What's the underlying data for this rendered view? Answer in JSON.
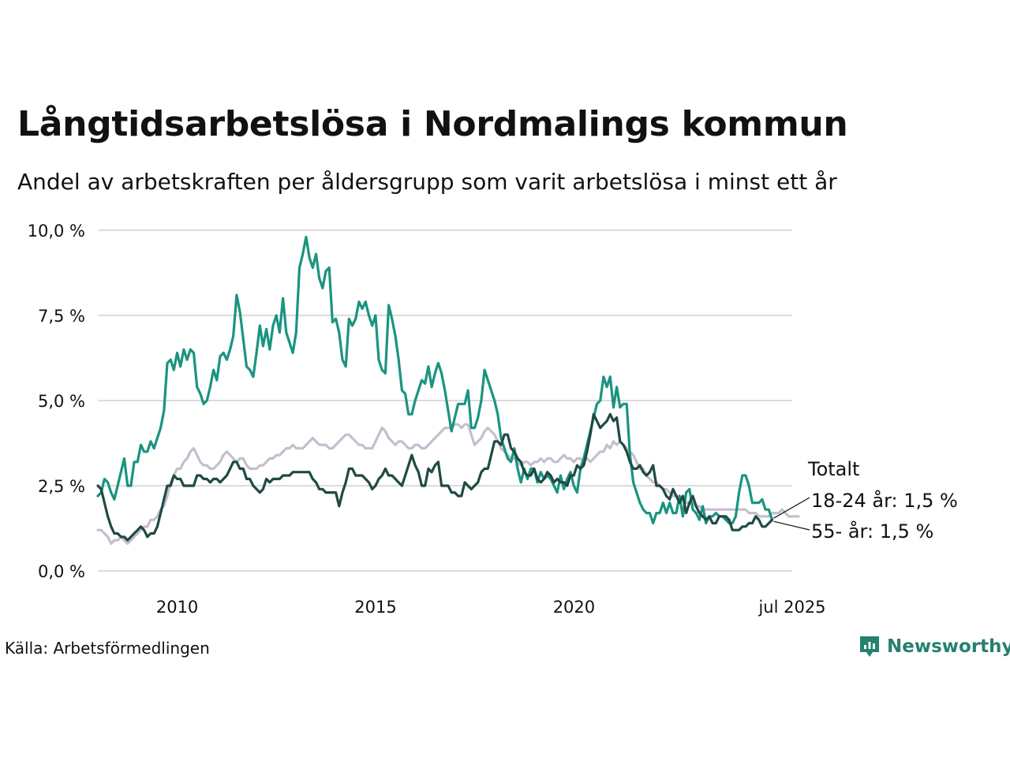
{
  "title": "Långtidsarbetslösa i Nordmalings kommun",
  "subtitle": "Andel av arbetskraften per åldersgrupp som varit arbetslösa i minst ett år",
  "source": "Källa: Arbetsförmedlingen",
  "brand": {
    "name": "Newsworthy",
    "icon": "newsworthy-logo-icon",
    "color": "#26806f"
  },
  "chart_data": {
    "type": "line",
    "x_start": 2008.0,
    "x_step_years": 0.0833,
    "xlim": [
      2008.0,
      2025.5
    ],
    "ylim": [
      0,
      10
    ],
    "y_ticks": [
      0,
      2.5,
      5,
      7.5,
      10
    ],
    "y_tick_labels": [
      "0,0 %",
      "2,5 %",
      "5,0 %",
      "7,5 %",
      "10,0 %"
    ],
    "x_ticks": [
      2010,
      2015,
      2020,
      2025.5
    ],
    "x_tick_labels": [
      "2010",
      "2015",
      "2020",
      "jul 2025"
    ],
    "grid": true,
    "legend": "direct-labels-right",
    "series": [
      {
        "name": "Totalt",
        "label": "Totalt",
        "color": "#c4bfcd",
        "values": [
          1.2,
          1.2,
          1.1,
          1.0,
          0.8,
          0.9,
          0.9,
          1.0,
          0.9,
          0.8,
          0.9,
          1.0,
          1.1,
          1.2,
          1.3,
          1.3,
          1.5,
          1.5,
          1.6,
          1.8,
          1.9,
          2.2,
          2.6,
          2.8,
          3.0,
          3.0,
          3.2,
          3.3,
          3.5,
          3.6,
          3.4,
          3.2,
          3.1,
          3.1,
          3.0,
          3.0,
          3.1,
          3.2,
          3.4,
          3.5,
          3.4,
          3.3,
          3.2,
          3.3,
          3.3,
          3.1,
          3.0,
          3.0,
          3.0,
          3.1,
          3.1,
          3.2,
          3.3,
          3.3,
          3.4,
          3.4,
          3.5,
          3.6,
          3.6,
          3.7,
          3.6,
          3.6,
          3.6,
          3.7,
          3.8,
          3.9,
          3.8,
          3.7,
          3.7,
          3.7,
          3.6,
          3.6,
          3.7,
          3.8,
          3.9,
          4.0,
          4.0,
          3.9,
          3.8,
          3.7,
          3.7,
          3.6,
          3.6,
          3.6,
          3.8,
          4.0,
          4.2,
          4.1,
          3.9,
          3.8,
          3.7,
          3.8,
          3.8,
          3.7,
          3.6,
          3.6,
          3.7,
          3.7,
          3.6,
          3.6,
          3.7,
          3.8,
          3.9,
          4.0,
          4.1,
          4.2,
          4.2,
          4.2,
          4.3,
          4.3,
          4.2,
          4.3,
          4.3,
          4.0,
          3.7,
          3.8,
          3.9,
          4.1,
          4.2,
          4.1,
          4.0,
          3.8,
          3.6,
          3.5,
          3.4,
          3.3,
          3.3,
          3.2,
          3.1,
          3.2,
          3.2,
          3.1,
          3.2,
          3.2,
          3.3,
          3.2,
          3.3,
          3.3,
          3.2,
          3.2,
          3.3,
          3.4,
          3.3,
          3.3,
          3.2,
          3.3,
          3.3,
          3.2,
          3.3,
          3.2,
          3.3,
          3.4,
          3.5,
          3.5,
          3.7,
          3.6,
          3.8,
          3.7,
          3.8,
          3.7,
          3.6,
          3.5,
          3.4,
          3.2,
          3.0,
          3.0,
          2.8,
          2.7,
          2.6,
          2.6,
          2.5,
          2.4,
          2.4,
          2.3,
          2.2,
          2.2,
          2.2,
          2.1,
          2.0,
          2.0,
          2.0,
          1.9,
          1.9,
          1.8,
          1.8,
          1.8,
          1.8,
          1.8,
          1.8,
          1.8,
          1.8,
          1.8,
          1.8,
          1.8,
          1.8,
          1.8,
          1.8,
          1.7,
          1.7,
          1.7,
          1.6,
          1.6,
          1.6,
          1.6,
          1.7,
          1.7,
          1.7,
          1.8,
          1.7,
          1.6,
          1.6,
          1.6,
          1.6
        ]
      },
      {
        "name": "18-24 år",
        "label": "18-24 år: 1,5 %",
        "color": "#1a9480",
        "values": [
          2.2,
          2.3,
          2.7,
          2.6,
          2.3,
          2.1,
          2.5,
          2.9,
          3.3,
          2.5,
          2.5,
          3.2,
          3.2,
          3.7,
          3.5,
          3.5,
          3.8,
          3.6,
          3.9,
          4.2,
          4.7,
          6.1,
          6.2,
          5.9,
          6.4,
          6.0,
          6.5,
          6.2,
          6.5,
          6.4,
          5.4,
          5.2,
          4.9,
          5.0,
          5.4,
          5.9,
          5.6,
          6.3,
          6.4,
          6.2,
          6.5,
          6.9,
          8.1,
          7.6,
          6.8,
          6.0,
          5.9,
          5.7,
          6.4,
          7.2,
          6.6,
          7.1,
          6.5,
          7.2,
          7.5,
          7.0,
          8.0,
          7.0,
          6.7,
          6.4,
          7.0,
          8.9,
          9.3,
          9.8,
          9.2,
          8.9,
          9.3,
          8.6,
          8.3,
          8.8,
          8.9,
          7.3,
          7.4,
          7.0,
          6.2,
          6.0,
          7.4,
          7.2,
          7.4,
          7.9,
          7.7,
          7.9,
          7.5,
          7.2,
          7.5,
          6.2,
          5.9,
          5.8,
          7.8,
          7.4,
          6.9,
          6.2,
          5.3,
          5.2,
          4.6,
          4.6,
          5.0,
          5.3,
          5.6,
          5.5,
          6.0,
          5.4,
          5.8,
          6.1,
          5.8,
          5.3,
          4.7,
          4.1,
          4.5,
          4.9,
          4.9,
          4.9,
          5.3,
          4.2,
          4.2,
          4.5,
          5.0,
          5.9,
          5.6,
          5.3,
          5.0,
          4.6,
          3.9,
          3.6,
          3.3,
          3.2,
          3.6,
          3.0,
          2.6,
          3.0,
          2.7,
          3.0,
          3.0,
          2.6,
          2.9,
          2.7,
          2.8,
          2.7,
          2.5,
          2.3,
          2.8,
          2.4,
          2.7,
          2.9,
          2.5,
          2.3,
          3.0,
          3.3,
          3.7,
          4.1,
          4.5,
          4.9,
          5.0,
          5.7,
          5.4,
          5.7,
          4.8,
          5.4,
          4.8,
          4.9,
          4.9,
          3.4,
          2.6,
          2.3,
          2.0,
          1.8,
          1.7,
          1.7,
          1.4,
          1.7,
          1.7,
          2.0,
          1.7,
          2.0,
          1.7,
          1.7,
          2.2,
          1.6,
          2.3,
          2.4,
          1.8,
          1.7,
          1.5,
          1.9,
          1.4,
          1.6,
          1.6,
          1.7,
          1.6,
          1.6,
          1.5,
          1.4,
          1.4,
          1.6,
          2.3,
          2.8,
          2.8,
          2.5,
          2.0,
          2.0,
          2.0,
          2.1,
          1.8,
          1.8,
          1.5
        ]
      },
      {
        "name": "55- år",
        "label": "55- år: 1,5 %",
        "color": "#1f4a44",
        "values": [
          2.5,
          2.4,
          2.0,
          1.6,
          1.3,
          1.1,
          1.1,
          1.0,
          1.0,
          0.9,
          1.0,
          1.1,
          1.2,
          1.3,
          1.2,
          1.0,
          1.1,
          1.1,
          1.3,
          1.7,
          2.1,
          2.5,
          2.5,
          2.8,
          2.7,
          2.7,
          2.5,
          2.5,
          2.5,
          2.5,
          2.8,
          2.8,
          2.7,
          2.7,
          2.6,
          2.7,
          2.7,
          2.6,
          2.7,
          2.8,
          3.0,
          3.2,
          3.2,
          3.0,
          3.0,
          2.7,
          2.7,
          2.5,
          2.4,
          2.3,
          2.4,
          2.7,
          2.6,
          2.7,
          2.7,
          2.7,
          2.8,
          2.8,
          2.8,
          2.9,
          2.9,
          2.9,
          2.9,
          2.9,
          2.9,
          2.7,
          2.6,
          2.4,
          2.4,
          2.3,
          2.3,
          2.3,
          2.3,
          1.9,
          2.3,
          2.6,
          3.0,
          3.0,
          2.8,
          2.8,
          2.8,
          2.7,
          2.6,
          2.4,
          2.5,
          2.7,
          2.8,
          3.0,
          2.8,
          2.8,
          2.7,
          2.6,
          2.5,
          2.8,
          3.1,
          3.4,
          3.1,
          2.9,
          2.5,
          2.5,
          3.0,
          2.9,
          3.1,
          3.2,
          2.5,
          2.5,
          2.5,
          2.3,
          2.3,
          2.2,
          2.2,
          2.6,
          2.5,
          2.4,
          2.5,
          2.6,
          2.9,
          3.0,
          3.0,
          3.4,
          3.8,
          3.8,
          3.7,
          4.0,
          4.0,
          3.6,
          3.5,
          3.3,
          3.2,
          2.9,
          2.8,
          2.8,
          3.0,
          2.7,
          2.6,
          2.7,
          2.9,
          2.8,
          2.6,
          2.7,
          2.6,
          2.6,
          2.5,
          2.8,
          2.8,
          3.1,
          3.0,
          3.1,
          3.5,
          4.0,
          4.6,
          4.4,
          4.2,
          4.3,
          4.4,
          4.6,
          4.4,
          4.5,
          3.8,
          3.7,
          3.5,
          3.2,
          3.0,
          3.0,
          3.1,
          2.9,
          2.8,
          2.9,
          3.1,
          2.5,
          2.5,
          2.4,
          2.2,
          2.1,
          2.4,
          2.2,
          2.0,
          2.2,
          1.7,
          2.0,
          2.2,
          1.9,
          1.7,
          1.6,
          1.5,
          1.6,
          1.4,
          1.4,
          1.6,
          1.6,
          1.6,
          1.5,
          1.2,
          1.2,
          1.2,
          1.3,
          1.3,
          1.4,
          1.4,
          1.6,
          1.5,
          1.3,
          1.3,
          1.4,
          1.5
        ]
      }
    ]
  }
}
